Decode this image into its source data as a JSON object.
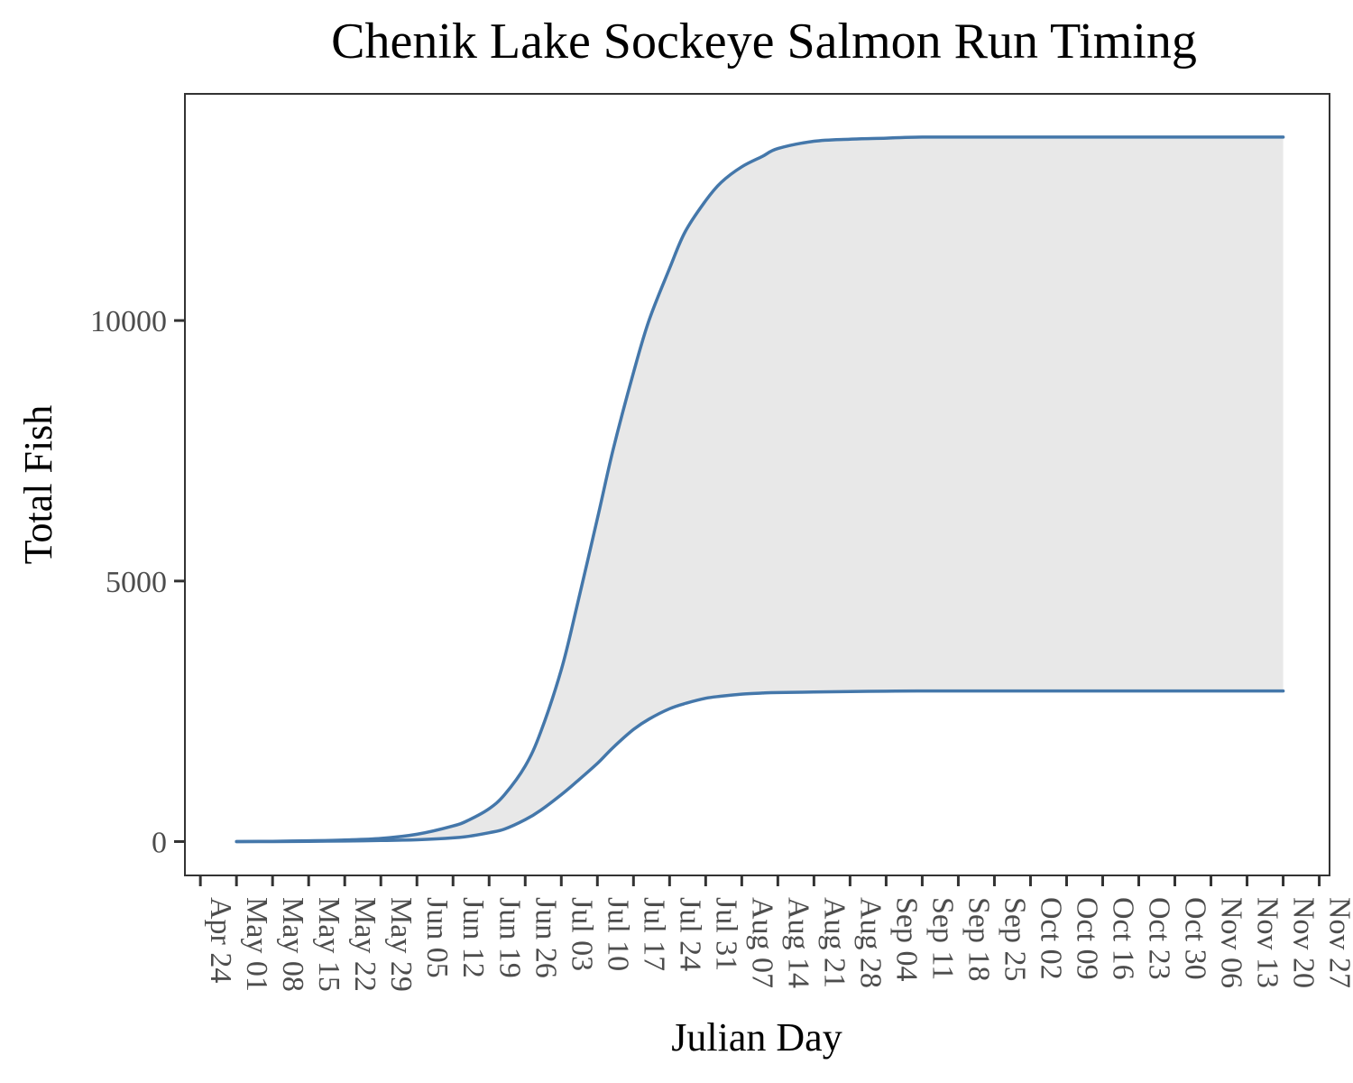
{
  "chart_data": {
    "type": "area",
    "title": "Chenik Lake Sockeye Salmon Run Timing",
    "xlabel": "Julian Day",
    "ylabel": "Total Fish",
    "ylim": [
      -650,
      14350
    ],
    "xlim": [
      "2024-04-21",
      "2024-11-29"
    ],
    "grid": false,
    "legend": "none",
    "colors": {
      "line": "#4477AA",
      "band": "#E8E8E8",
      "panel_border": "#333333",
      "axis_text": "#4d4d4d"
    },
    "y_ticks": [
      0,
      5000,
      10000
    ],
    "x_ticks": [
      "Apr 24",
      "May 01",
      "May 08",
      "May 15",
      "May 22",
      "May 29",
      "Jun 05",
      "Jun 12",
      "Jun 19",
      "Jun 26",
      "Jul 03",
      "Jul 10",
      "Jul 17",
      "Jul 24",
      "Jul 31",
      "Aug 07",
      "Aug 14",
      "Aug 21",
      "Aug 28",
      "Sep 04",
      "Sep 11",
      "Sep 18",
      "Sep 25",
      "Oct 02",
      "Oct 09",
      "Oct 16",
      "Oct 23",
      "Oct 30",
      "Nov 06",
      "Nov 13",
      "Nov 20",
      "Nov 27"
    ],
    "x": [
      "May 01",
      "May 08",
      "May 15",
      "May 22",
      "May 29",
      "Jun 05",
      "Jun 12",
      "Jun 15",
      "Jun 19",
      "Jun 22",
      "Jun 26",
      "Jun 29",
      "Jul 03",
      "Jul 06",
      "Jul 10",
      "Jul 13",
      "Jul 17",
      "Jul 20",
      "Jul 24",
      "Jul 27",
      "Jul 31",
      "Aug 03",
      "Aug 07",
      "Aug 11",
      "Aug 14",
      "Aug 21",
      "Aug 28",
      "Sep 04",
      "Sep 11",
      "Oct 02",
      "Oct 30",
      "Nov 20"
    ],
    "series": [
      {
        "values": [
          0,
          5,
          15,
          30,
          60,
          140,
          300,
          410,
          630,
          900,
          1450,
          2100,
          3300,
          4500,
          6200,
          7500,
          9000,
          10000,
          11000,
          11700,
          12300,
          12650,
          12950,
          13150,
          13300,
          13440,
          13480,
          13500,
          13520,
          13520,
          13520,
          13520
        ]
      },
      {
        "values": [
          0,
          0,
          5,
          10,
          20,
          35,
          70,
          100,
          170,
          240,
          420,
          600,
          900,
          1150,
          1500,
          1800,
          2150,
          2350,
          2550,
          2650,
          2750,
          2790,
          2830,
          2850,
          2860,
          2870,
          2880,
          2885,
          2890,
          2890,
          2890,
          2890
        ]
      }
    ]
  }
}
